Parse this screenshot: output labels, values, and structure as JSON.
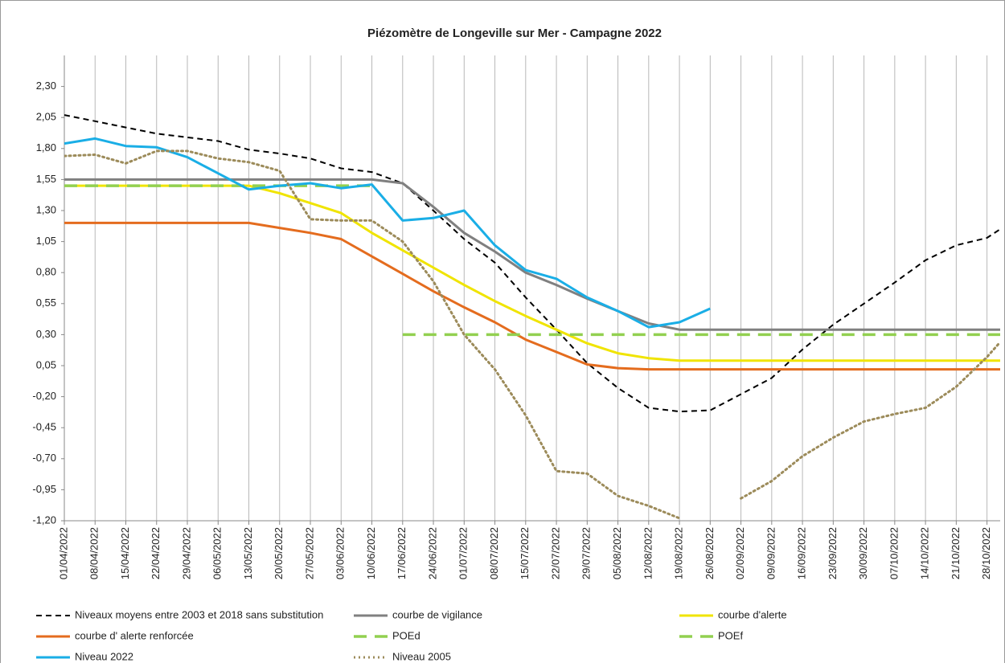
{
  "chart_data": {
    "type": "line",
    "title": "Piézomètre de Longeville sur Mer - Campagne 2022",
    "x": [
      "01/04/2022",
      "08/04/2022",
      "15/04/2022",
      "22/04/2022",
      "29/04/2022",
      "06/05/2022",
      "13/05/2022",
      "20/05/2022",
      "27/05/2022",
      "03/06/2022",
      "10/06/2022",
      "17/06/2022",
      "24/06/2022",
      "01/07/2022",
      "08/07/2022",
      "15/07/2022",
      "22/07/2022",
      "29/07/2022",
      "05/08/2022",
      "12/08/2022",
      "19/08/2022",
      "26/08/2022",
      "02/09/2022",
      "09/09/2022",
      "16/09/2022",
      "23/09/2022",
      "30/09/2022",
      "07/10/2022",
      "14/10/2022",
      "21/10/2022",
      "28/10/2022",
      "31/10/2022"
    ],
    "xlim": [
      "01/04/2022",
      "31/10/2022"
    ],
    "xticks": [
      "01/04/2022",
      "08/04/2022",
      "15/04/2022",
      "22/04/2022",
      "29/04/2022",
      "06/05/2022",
      "13/05/2022",
      "20/05/2022",
      "27/05/2022",
      "03/06/2022",
      "10/06/2022",
      "17/06/2022",
      "24/06/2022",
      "01/07/2022",
      "08/07/2022",
      "15/07/2022",
      "22/07/2022",
      "29/07/2022",
      "05/08/2022",
      "12/08/2022",
      "19/08/2022",
      "26/08/2022",
      "02/09/2022",
      "09/09/2022",
      "16/09/2022",
      "23/09/2022",
      "30/09/2022",
      "07/10/2022",
      "14/10/2022",
      "21/10/2022",
      "28/10/2022"
    ],
    "ylim": [
      -1.2,
      2.55
    ],
    "yticks": [
      {
        "value": -1.2,
        "label": "-1,20"
      },
      {
        "value": -0.95,
        "label": "-0,95"
      },
      {
        "value": -0.7,
        "label": "-0,70"
      },
      {
        "value": -0.45,
        "label": "-0,45"
      },
      {
        "value": -0.2,
        "label": "-0,20"
      },
      {
        "value": 0.05,
        "label": "0,05"
      },
      {
        "value": 0.3,
        "label": "0,30"
      },
      {
        "value": 0.55,
        "label": "0,55"
      },
      {
        "value": 0.8,
        "label": "0,80"
      },
      {
        "value": 1.05,
        "label": "1,05"
      },
      {
        "value": 1.3,
        "label": "1,30"
      },
      {
        "value": 1.55,
        "label": "1,55"
      },
      {
        "value": 1.8,
        "label": "1,80"
      },
      {
        "value": 2.05,
        "label": "2,05"
      },
      {
        "value": 2.3,
        "label": "2,30"
      }
    ],
    "grid": "x",
    "series": [
      {
        "name": "Niveaux moyens entre 2003 et 2018 sans substitution",
        "color": "#000000",
        "style": "dashed",
        "values": [
          2.07,
          2.02,
          1.97,
          1.92,
          1.89,
          1.86,
          1.79,
          1.76,
          1.72,
          1.64,
          1.61,
          1.52,
          1.3,
          1.07,
          0.88,
          0.6,
          0.34,
          0.07,
          -0.13,
          -0.29,
          -0.32,
          -0.31,
          -0.18,
          -0.05,
          0.18,
          0.38,
          0.55,
          0.72,
          0.9,
          1.02,
          1.08,
          1.15
        ]
      },
      {
        "name": "courbe de vigilance",
        "color": "#808080",
        "style": "solid",
        "values": [
          1.55,
          1.55,
          1.55,
          1.55,
          1.55,
          1.55,
          1.55,
          1.55,
          1.55,
          1.55,
          1.55,
          1.52,
          1.33,
          1.12,
          0.97,
          0.8,
          0.7,
          0.59,
          0.49,
          0.39,
          0.34,
          0.34,
          0.34,
          0.34,
          0.34,
          0.34,
          0.34,
          0.34,
          0.34,
          0.34,
          0.34,
          0.34
        ]
      },
      {
        "name": "courbe d'alerte",
        "color": "#f0e400",
        "style": "solid",
        "values": [
          1.5,
          1.5,
          1.5,
          1.5,
          1.5,
          1.5,
          1.5,
          1.44,
          1.36,
          1.28,
          1.12,
          0.98,
          0.84,
          0.7,
          0.57,
          0.45,
          0.34,
          0.23,
          0.15,
          0.11,
          0.09,
          0.09,
          0.09,
          0.09,
          0.09,
          0.09,
          0.09,
          0.09,
          0.09,
          0.09,
          0.09,
          0.09
        ]
      },
      {
        "name": "courbe d' alerte renforcée",
        "color": "#e46c1e",
        "style": "solid",
        "values": [
          1.2,
          1.2,
          1.2,
          1.2,
          1.2,
          1.2,
          1.2,
          1.16,
          1.12,
          1.07,
          0.93,
          0.79,
          0.65,
          0.52,
          0.4,
          0.26,
          0.16,
          0.06,
          0.03,
          0.02,
          0.02,
          0.02,
          0.02,
          0.02,
          0.02,
          0.02,
          0.02,
          0.02,
          0.02,
          0.02,
          0.02,
          0.02
        ]
      },
      {
        "name": "POEd",
        "color": "#92d050",
        "style": "longdash",
        "values": [
          1.5,
          1.5,
          1.5,
          1.5,
          1.5,
          1.5,
          1.5,
          1.5,
          1.5,
          1.5,
          1.5,
          null,
          null,
          null,
          null,
          null,
          null,
          null,
          null,
          null,
          null,
          null,
          null,
          null,
          null,
          null,
          null,
          null,
          null,
          null,
          null,
          null
        ]
      },
      {
        "name": "POEf",
        "color": "#92d050",
        "style": "longdash",
        "values": [
          null,
          null,
          null,
          null,
          null,
          null,
          null,
          null,
          null,
          null,
          null,
          0.3,
          0.3,
          0.3,
          0.3,
          0.3,
          0.3,
          0.3,
          0.3,
          0.3,
          0.3,
          0.3,
          0.3,
          0.3,
          0.3,
          0.3,
          0.3,
          0.3,
          0.3,
          0.3,
          0.3,
          0.3
        ]
      },
      {
        "name": "Niveau 2022",
        "color": "#1aaee6",
        "style": "solid",
        "values": [
          1.84,
          1.88,
          1.82,
          1.81,
          1.73,
          1.6,
          1.47,
          1.5,
          1.52,
          1.48,
          1.51,
          1.22,
          1.24,
          1.3,
          1.02,
          0.82,
          0.75,
          0.6,
          0.49,
          0.36,
          0.4,
          0.51,
          null,
          null,
          null,
          null,
          null,
          null,
          null,
          null,
          null,
          null
        ]
      },
      {
        "name": "Niveau 2005",
        "color": "#9c8b5a",
        "style": "dotted",
        "values": [
          1.74,
          1.75,
          1.68,
          1.78,
          1.78,
          1.72,
          1.69,
          1.62,
          1.23,
          1.22,
          1.22,
          1.05,
          0.73,
          0.3,
          0.02,
          -0.35,
          -0.8,
          -0.82,
          -1.0,
          -1.08,
          -1.18,
          null,
          -1.02,
          -0.88,
          -0.68,
          -0.53,
          -0.4,
          -0.34,
          -0.29,
          -0.12,
          0.12,
          0.24
        ]
      }
    ]
  }
}
